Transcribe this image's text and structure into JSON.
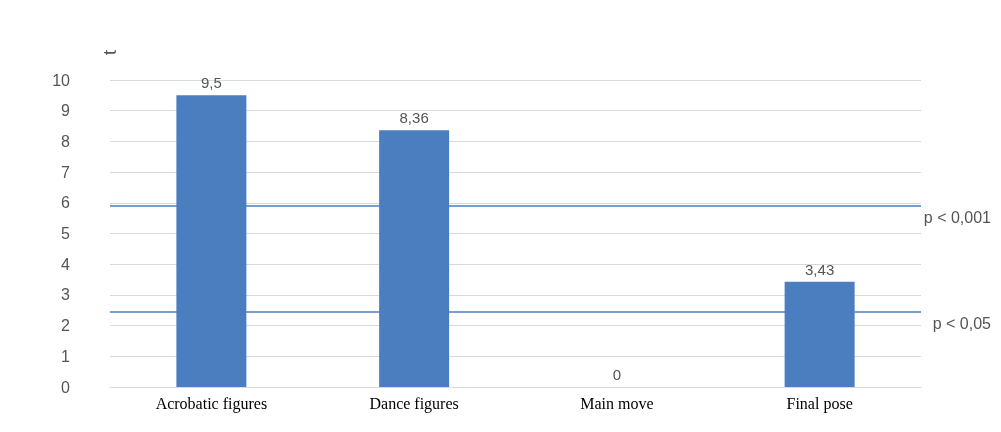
{
  "chart_data": {
    "type": "bar",
    "ylabel": "t",
    "categories": [
      "Acrobatic figures",
      "Dance figures",
      "Main move",
      "Final pose"
    ],
    "values": [
      9.5,
      8.36,
      0,
      3.43
    ],
    "color": "#4a7ebf",
    "value_labels": [
      "9,5",
      "8,36",
      "0",
      "3,43"
    ],
    "ylim": [
      0,
      10
    ],
    "yticks": [
      0,
      1,
      2,
      3,
      4,
      5,
      6,
      7,
      8,
      9,
      10
    ],
    "grid": "y",
    "ref_lines": [
      {
        "axis": "y",
        "value": 5.9,
        "label": "p < 0,001",
        "color": "#4a7ebf"
      },
      {
        "axis": "y",
        "value": 2.45,
        "label": "p < 0,05",
        "color": "#4a7ebf"
      }
    ]
  }
}
